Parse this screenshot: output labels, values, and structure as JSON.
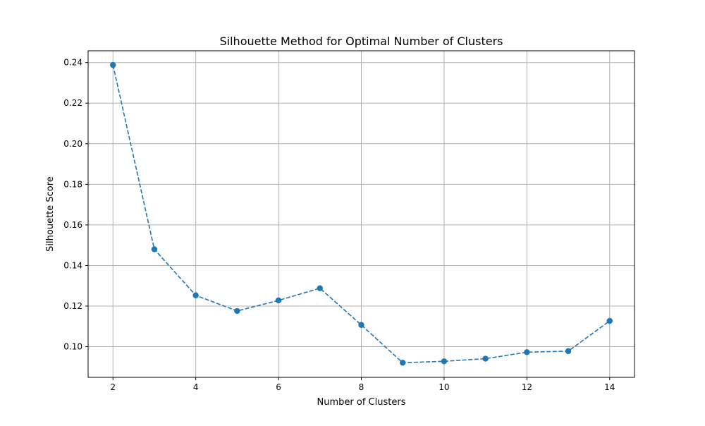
{
  "chart_data": {
    "type": "line",
    "title": "Silhouette Method for Optimal Number of Clusters",
    "xlabel": "Number of Clusters",
    "ylabel": "Silhouette Score",
    "x": [
      2,
      3,
      4,
      5,
      6,
      7,
      8,
      9,
      10,
      11,
      12,
      13,
      14
    ],
    "series": [
      {
        "values": [
          0.2388,
          0.148,
          0.1253,
          0.1176,
          0.1228,
          0.1288,
          0.1107,
          0.0921,
          0.0928,
          0.0941,
          0.0973,
          0.0978,
          0.1127
        ],
        "color": "#1f77b4",
        "line_style": "dashed",
        "marker": "circle"
      }
    ],
    "xlim": [
      1.4,
      14.6
    ],
    "ylim": [
      0.0849,
      0.2458
    ],
    "xticks": [
      2,
      4,
      6,
      8,
      10,
      12,
      14
    ],
    "xtick_labels": [
      "2",
      "4",
      "6",
      "8",
      "10",
      "12",
      "14"
    ],
    "yticks": [
      0.1,
      0.12,
      0.14,
      0.16,
      0.18,
      0.2,
      0.22,
      0.24
    ],
    "ytick_labels": [
      "0.10",
      "0.12",
      "0.14",
      "0.16",
      "0.18",
      "0.20",
      "0.22",
      "0.24"
    ],
    "grid": true,
    "grid_color": "#b0b0b0"
  }
}
